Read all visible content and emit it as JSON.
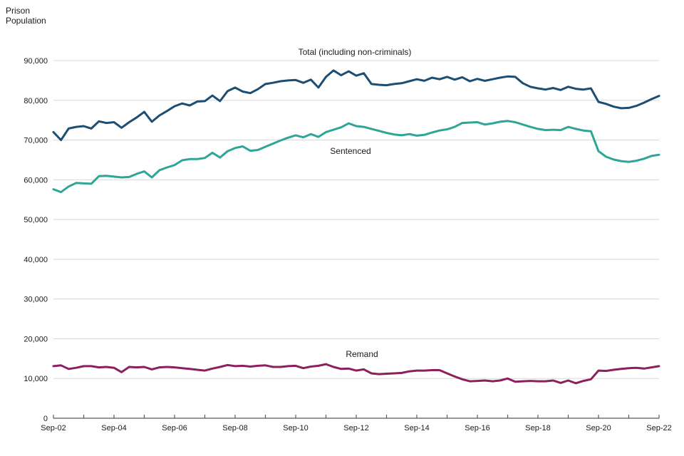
{
  "chart_data": {
    "type": "line",
    "title": "",
    "ylabel": "Prison Population",
    "xlabel": "",
    "ylim": [
      0,
      90000
    ],
    "y_ticks": [
      0,
      10000,
      20000,
      30000,
      40000,
      50000,
      60000,
      70000,
      80000,
      90000
    ],
    "x_tick_labels": [
      "Sep-02",
      "Sep-04",
      "Sep-06",
      "Sep-08",
      "Sep-10",
      "Sep-12",
      "Sep-14",
      "Sep-16",
      "Sep-18",
      "Sep-20",
      "Sep-22"
    ],
    "x_minor_tick_every_years": 1,
    "x_label_every_years": 2,
    "frequency": "quarterly",
    "x_range": [
      "Sep-02",
      "Sep-22"
    ],
    "grid": "horizontal",
    "legend": "inline-labels",
    "colors": {
      "grid": "#d9d9d9",
      "axis": "#595959",
      "tick_text": "#1a1a1a",
      "series_label_text": "#3f3f3f"
    },
    "series": [
      {
        "key": "total",
        "name": "Total (including non-criminals)",
        "color": "#1c4e74",
        "values": [
          72000,
          70000,
          72900,
          73300,
          73500,
          72900,
          74700,
          74300,
          74500,
          73100,
          74500,
          75700,
          77100,
          74600,
          76200,
          77300,
          78500,
          79200,
          78700,
          79700,
          79800,
          81200,
          79800,
          82300,
          83200,
          82200,
          81800,
          82800,
          84100,
          84400,
          84800,
          85000,
          85100,
          84400,
          85200,
          83200,
          85900,
          87500,
          86300,
          87300,
          86200,
          86800,
          84100,
          83900,
          83800,
          84100,
          84300,
          84800,
          85300,
          84900,
          85700,
          85300,
          85900,
          85200,
          85800,
          84800,
          85400,
          84900,
          85300,
          85700,
          86000,
          85900,
          84300,
          83400,
          83000,
          82700,
          83100,
          82600,
          83400,
          82900,
          82700,
          83000,
          79600,
          79100,
          78400,
          78000,
          78100,
          78600,
          79400,
          80300,
          81100
        ]
      },
      {
        "key": "sentenced",
        "name": "Sentenced",
        "color": "#2fa597",
        "values": [
          57600,
          56900,
          58300,
          59200,
          59100,
          59000,
          60900,
          61000,
          60800,
          60600,
          60700,
          61500,
          62100,
          60600,
          62400,
          63100,
          63700,
          64900,
          65200,
          65200,
          65500,
          66800,
          65600,
          67200,
          68000,
          68400,
          67300,
          67500,
          68300,
          69100,
          69900,
          70600,
          71200,
          70700,
          71500,
          70800,
          72000,
          72600,
          73200,
          74200,
          73500,
          73300,
          72800,
          72300,
          71800,
          71400,
          71200,
          71500,
          71100,
          71300,
          71900,
          72400,
          72700,
          73300,
          74300,
          74400,
          74500,
          73900,
          74200,
          74600,
          74800,
          74500,
          73900,
          73300,
          72800,
          72500,
          72600,
          72500,
          73300,
          72800,
          72400,
          72200,
          67200,
          65800,
          65100,
          64700,
          64500,
          64800,
          65300,
          66000,
          66300
        ]
      },
      {
        "key": "remand",
        "name": "Remand",
        "color": "#8c1f5e",
        "values": [
          13100,
          13300,
          12400,
          12700,
          13100,
          13100,
          12800,
          12900,
          12700,
          11600,
          12900,
          12800,
          12900,
          12300,
          12800,
          12900,
          12800,
          12600,
          12400,
          12200,
          12000,
          12500,
          12900,
          13400,
          13100,
          13200,
          13000,
          13200,
          13300,
          12900,
          12900,
          13100,
          13200,
          12600,
          13000,
          13200,
          13600,
          12900,
          12400,
          12500,
          12000,
          12300,
          11300,
          11100,
          11200,
          11300,
          11400,
          11800,
          12000,
          12000,
          12100,
          12100,
          11300,
          10500,
          9800,
          9300,
          9400,
          9500,
          9300,
          9500,
          10000,
          9200,
          9300,
          9400,
          9300,
          9300,
          9500,
          8900,
          9500,
          8800,
          9400,
          9800,
          12000,
          11900,
          12200,
          12400,
          12600,
          12700,
          12500,
          12800,
          13100
        ]
      }
    ]
  }
}
